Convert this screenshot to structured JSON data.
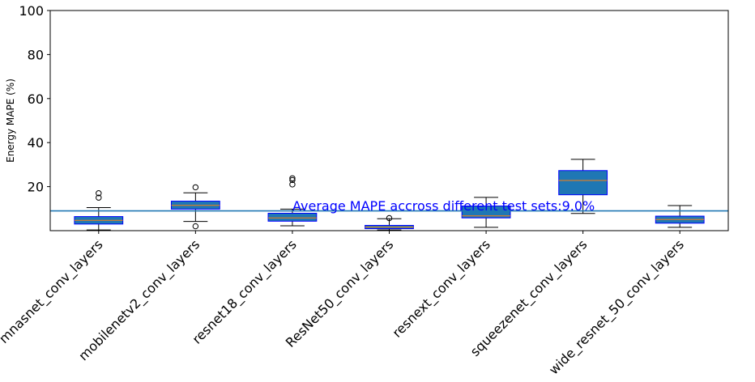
{
  "chart_data": {
    "type": "boxplot",
    "title": "",
    "xlabel": "",
    "ylabel": "Energy MAPE (%)",
    "ylim": [
      0,
      100
    ],
    "yticks": [
      20,
      40,
      60,
      80,
      100
    ],
    "grid": false,
    "categories": [
      "mnasnet_conv_layers",
      "mobilenetv2_conv_layers",
      "resnet18_conv_layers",
      "ResNet50_conv_layers",
      "resnext_conv_layers",
      "squeezenet_conv_layers",
      "wide_resnet_50_conv_layers"
    ],
    "boxes": [
      {
        "whisker_low": 0.3,
        "q1": 3.0,
        "median": 4.7,
        "q3": 6.4,
        "whisker_high": 10.5,
        "outliers": [
          15.0,
          17.0
        ]
      },
      {
        "whisker_low": 4.2,
        "q1": 9.8,
        "median": 11.5,
        "q3": 13.4,
        "whisker_high": 17.2,
        "outliers": [
          2.0,
          19.7
        ]
      },
      {
        "whisker_low": 2.2,
        "q1": 4.3,
        "median": 5.8,
        "q3": 7.9,
        "whisker_high": 9.8,
        "outliers": [
          21.0,
          23.0,
          23.8
        ]
      },
      {
        "whisker_low": 0.3,
        "q1": 0.9,
        "median": 1.6,
        "q3": 2.4,
        "whisker_high": 5.4,
        "outliers": [
          5.7
        ]
      },
      {
        "whisker_low": 1.5,
        "q1": 5.8,
        "median": 6.7,
        "q3": 11.2,
        "whisker_high": 15.1,
        "outliers": []
      },
      {
        "whisker_low": 7.8,
        "q1": 16.3,
        "median": 22.8,
        "q3": 27.3,
        "whisker_high": 32.4,
        "outliers": []
      },
      {
        "whisker_low": 1.5,
        "q1": 3.4,
        "median": 5.1,
        "q3": 6.6,
        "whisker_high": 11.4,
        "outliers": []
      }
    ],
    "reference_line": {
      "y": 9.0
    },
    "annotation": "Average MAPE accross different test sets:9.0%",
    "colors": {
      "box_fill": "#1f77b4",
      "box_edge": "#0000ff",
      "median": "#ff7f0e",
      "whisker": "#000000",
      "reference_line": "#1f77b4",
      "annotation": "#0000ff"
    }
  }
}
